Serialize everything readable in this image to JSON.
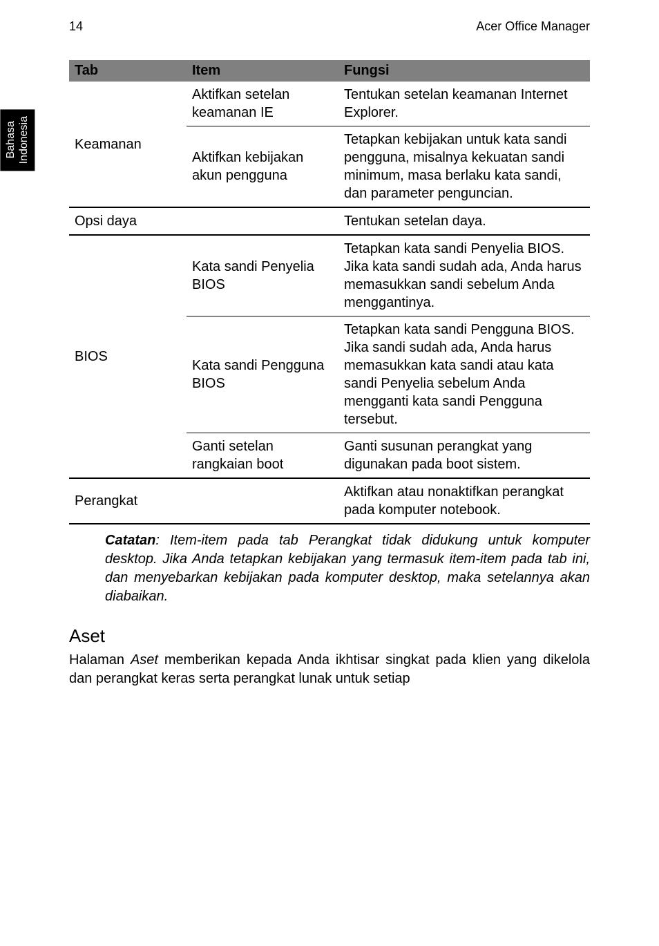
{
  "header": {
    "page_number": "14",
    "doc_title": "Acer Office Manager"
  },
  "side_tab": {
    "line1": "Bahasa",
    "line2": "Indonesia"
  },
  "table": {
    "headers": {
      "tab": "Tab",
      "item": "Item",
      "fungsi": "Fungsi"
    },
    "rows": [
      {
        "tab": "",
        "item": "Aktifkan setelan keamanan IE",
        "fungsi": "Tentukan setelan keamanan Internet Explorer."
      },
      {
        "tab": "Keamanan",
        "item": "Aktifkan kebijakan akun pengguna",
        "fungsi": "Tetapkan kebijakan untuk kata sandi pengguna, misalnya kekuatan sandi minimum, masa berlaku kata sandi, dan parameter penguncian."
      },
      {
        "tab": "Opsi daya",
        "item": "",
        "fungsi": "Tentukan setelan daya."
      },
      {
        "tab": "",
        "item": "Kata sandi Penyelia BIOS",
        "fungsi": "Tetapkan kata sandi Penyelia BIOS. Jika kata sandi sudah ada, Anda harus memasukkan sandi sebelum Anda menggantinya."
      },
      {
        "tab": "BIOS",
        "item": "Kata sandi Pengguna BIOS",
        "fungsi": "Tetapkan kata sandi Pengguna BIOS. Jika sandi sudah ada, Anda harus memasukkan kata sandi atau kata sandi Penyelia sebelum Anda mengganti kata sandi Pengguna tersebut."
      },
      {
        "tab": "",
        "item": "Ganti setelan rangkaian boot",
        "fungsi": "Ganti susunan perangkat yang digunakan pada boot sistem."
      },
      {
        "tab": "Perangkat",
        "item": "",
        "fungsi": "Aktifkan atau nonaktifkan perangkat pada komputer notebook."
      }
    ]
  },
  "note": {
    "label": "Catatan",
    "text": ": Item-item pada tab Perangkat tidak didukung untuk komputer desktop. Jika Anda tetapkan kebijakan yang termasuk item-item pada tab ini, dan menyebarkan kebijakan pada komputer desktop, maka setelannya akan diabaikan."
  },
  "section": {
    "heading": "Aset",
    "body_pre": "Halaman ",
    "body_ital": "Aset",
    "body_post": " memberikan kepada Anda ikhtisar singkat pada klien yang dikelola dan perangkat keras serta perangkat lunak untuk setiap"
  }
}
